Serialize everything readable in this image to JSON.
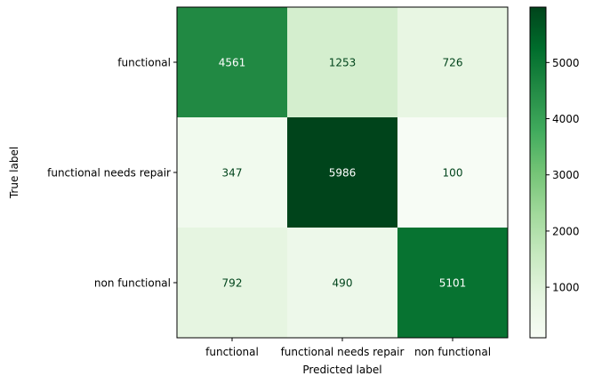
{
  "chart_data": {
    "type": "heatmap",
    "title": "",
    "xlabel": "Predicted label",
    "ylabel": "True label",
    "x_categories": [
      "functional",
      "functional needs repair",
      "non functional"
    ],
    "y_categories": [
      "functional",
      "functional needs repair",
      "non functional"
    ],
    "values": [
      [
        4561,
        1253,
        726
      ],
      [
        347,
        5986,
        100
      ],
      [
        792,
        490,
        5101
      ]
    ],
    "colorbar": {
      "min": 100,
      "max": 5986,
      "ticks": [
        1000,
        2000,
        3000,
        4000,
        5000
      ],
      "colormap": "Greens"
    },
    "grid": false
  }
}
